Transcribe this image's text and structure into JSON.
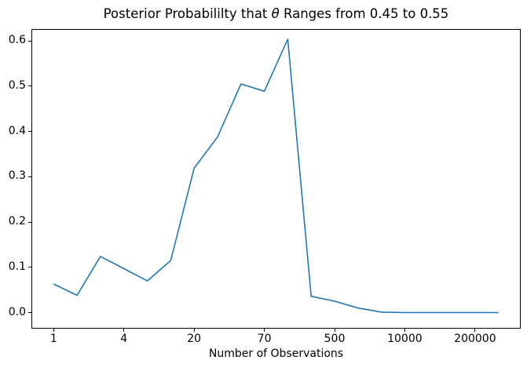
{
  "title": {
    "prefix": "Posterior Probabililty that ",
    "theta": "θ",
    "suffix": " Ranges from 0.45 to 0.55"
  },
  "chart_data": {
    "type": "line",
    "title": "Posterior Probabililty that θ Ranges from 0.45 to 0.55",
    "xlabel": "Number of Observations",
    "ylabel": "",
    "legend": null,
    "grid": false,
    "line_color": "#1f77b4",
    "background_color": "#ffffff",
    "axis_color": "#000000",
    "x_axis_note": "points plotted at equal index spacing; labeled ticks fall on every 3rd point",
    "x_indices": [
      0,
      1,
      2,
      3,
      4,
      5,
      6,
      7,
      8,
      9,
      10,
      11,
      12,
      13,
      14,
      15,
      16,
      17,
      18,
      19
    ],
    "y_values": [
      0.063,
      0.038,
      0.124,
      0.097,
      0.07,
      0.115,
      0.319,
      0.388,
      0.505,
      0.489,
      0.604,
      0.036,
      0.025,
      0.01,
      0.001,
      0.0,
      0.0,
      0.0,
      0.0,
      0.0
    ],
    "x_tick_indices": [
      0,
      3,
      6,
      9,
      12,
      15,
      18
    ],
    "x_tick_labels": [
      "1",
      "4",
      "20",
      "70",
      "500",
      "10000",
      "200000"
    ],
    "y_tick_values": [
      0.0,
      0.1,
      0.2,
      0.3,
      0.4,
      0.5,
      0.6
    ],
    "y_tick_labels": [
      "0.0",
      "0.1",
      "0.2",
      "0.3",
      "0.4",
      "0.5",
      "0.6"
    ],
    "xlim": [
      -0.95,
      19.95
    ],
    "ylim": [
      -0.0356,
      0.6264
    ]
  }
}
